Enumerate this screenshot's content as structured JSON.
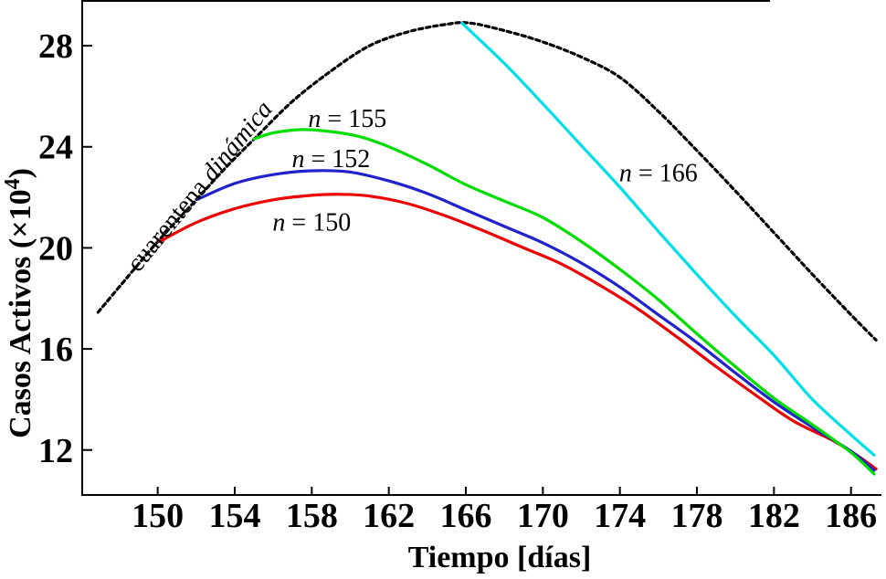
{
  "figure": {
    "background": "#ffffff",
    "frame_color": "#000000"
  },
  "chart_data": {
    "type": "line",
    "title": "",
    "xlabel": "Tiempo [días]",
    "ylabel": "Casos Activos (×10⁴)",
    "ylabel_parts": {
      "main": "Casos Activos  (×10",
      "sup": "4",
      "close": ")"
    },
    "xlim": [
      146.08,
      187.58
    ],
    "ylim": [
      10.22,
      29.81
    ],
    "x_ticks": [
      150,
      154,
      158,
      162,
      166,
      170,
      174,
      178,
      182,
      186
    ],
    "y_ticks": [
      12,
      16,
      20,
      24,
      28
    ],
    "grid": false,
    "legend_position": "none",
    "series": [
      {
        "name": "cuarentena dinámica",
        "color": "#000000",
        "style": "dotted",
        "points": [
          [
            146.9,
            17.45
          ],
          [
            148,
            18.45
          ],
          [
            150,
            20.25
          ],
          [
            152,
            21.9
          ],
          [
            153.5,
            23.15
          ],
          [
            155,
            24.3
          ],
          [
            157,
            25.8
          ],
          [
            159,
            27.0
          ],
          [
            161,
            28.0
          ],
          [
            163,
            28.55
          ],
          [
            165,
            28.85
          ],
          [
            166.2,
            28.9
          ],
          [
            168,
            28.6
          ],
          [
            170,
            28.15
          ],
          [
            172,
            27.55
          ],
          [
            174,
            26.75
          ],
          [
            176,
            25.4
          ],
          [
            178,
            23.85
          ],
          [
            180,
            22.25
          ],
          [
            182,
            20.6
          ],
          [
            184,
            18.95
          ],
          [
            186,
            17.35
          ],
          [
            187.3,
            16.35
          ]
        ]
      },
      {
        "name": "n = 150",
        "color": "#ee0000",
        "style": "solid",
        "points": [
          [
            150.1,
            20.25
          ],
          [
            152,
            21.0
          ],
          [
            154,
            21.55
          ],
          [
            156,
            21.9
          ],
          [
            158,
            22.08
          ],
          [
            159.5,
            22.12
          ],
          [
            161,
            22.05
          ],
          [
            163,
            21.75
          ],
          [
            165,
            21.25
          ],
          [
            167,
            20.65
          ],
          [
            169,
            20.0
          ],
          [
            171,
            19.35
          ],
          [
            173,
            18.5
          ],
          [
            175,
            17.55
          ],
          [
            177,
            16.45
          ],
          [
            179,
            15.3
          ],
          [
            181,
            14.2
          ],
          [
            183,
            13.15
          ],
          [
            185,
            12.4
          ],
          [
            186.3,
            11.8
          ],
          [
            187.3,
            11.25
          ]
        ]
      },
      {
        "name": "n = 152",
        "color": "#2222cc",
        "style": "solid",
        "points": [
          [
            152.1,
            21.93
          ],
          [
            154,
            22.55
          ],
          [
            156,
            22.9
          ],
          [
            158,
            23.05
          ],
          [
            160,
            23.0
          ],
          [
            162,
            22.65
          ],
          [
            164,
            22.15
          ],
          [
            166,
            21.5
          ],
          [
            168,
            20.85
          ],
          [
            170,
            20.2
          ],
          [
            172,
            19.4
          ],
          [
            174,
            18.45
          ],
          [
            176,
            17.35
          ],
          [
            178,
            16.25
          ],
          [
            180,
            15.05
          ],
          [
            182,
            13.9
          ],
          [
            184,
            12.9
          ],
          [
            186,
            11.95
          ],
          [
            187.2,
            11.2
          ]
        ]
      },
      {
        "name": "n = 155",
        "color": "#00dd00",
        "style": "solid",
        "points": [
          [
            155,
            24.31
          ],
          [
            156,
            24.55
          ],
          [
            157.5,
            24.68
          ],
          [
            159,
            24.6
          ],
          [
            160.5,
            24.4
          ],
          [
            162,
            24.0
          ],
          [
            164,
            23.3
          ],
          [
            166,
            22.5
          ],
          [
            168,
            21.85
          ],
          [
            170,
            21.2
          ],
          [
            172,
            20.25
          ],
          [
            174,
            19.15
          ],
          [
            176,
            17.95
          ],
          [
            178,
            16.6
          ],
          [
            180,
            15.3
          ],
          [
            182,
            14.05
          ],
          [
            184,
            13.0
          ],
          [
            186,
            11.9
          ],
          [
            187.2,
            11.05
          ]
        ]
      },
      {
        "name": "n = 166",
        "color": "#00dfe8",
        "style": "solid",
        "points": [
          [
            165.8,
            28.9
          ],
          [
            168,
            27.3
          ],
          [
            170,
            25.7
          ],
          [
            172,
            24.05
          ],
          [
            174,
            22.4
          ],
          [
            176,
            20.65
          ],
          [
            178,
            18.95
          ],
          [
            180,
            17.3
          ],
          [
            182,
            15.75
          ],
          [
            184,
            14.0
          ],
          [
            186,
            12.6
          ],
          [
            187.2,
            11.8
          ]
        ]
      }
    ],
    "annotations": [
      {
        "text": "cuarentena dinámica",
        "day": 152.5,
        "value": 22.6,
        "rotation": -50.5,
        "size": 28,
        "parts": [
          {
            "t": "cuarentena ",
            "style": "roman"
          },
          {
            "t": "dinámica",
            "style": "italic"
          }
        ]
      },
      {
        "text": "n = 155",
        "day": 159.85,
        "value": 25.15,
        "rotation": 0,
        "size": 28,
        "parts": [
          {
            "t": "n",
            "style": "italic"
          },
          {
            "t": " = 155",
            "style": "roman"
          }
        ]
      },
      {
        "text": "n = 152",
        "day": 159.0,
        "value": 23.55,
        "rotation": 0,
        "size": 28,
        "parts": [
          {
            "t": "n",
            "style": "italic"
          },
          {
            "t": " = 152",
            "style": "roman"
          }
        ]
      },
      {
        "text": "n = 150",
        "day": 158.0,
        "value": 21.05,
        "rotation": 0,
        "size": 28,
        "parts": [
          {
            "t": "n",
            "style": "italic"
          },
          {
            "t": " = 150",
            "style": "roman"
          }
        ]
      },
      {
        "text": "n = 166",
        "day": 176.0,
        "value": 23.0,
        "rotation": 0,
        "size": 28,
        "parts": [
          {
            "t": "n",
            "style": "italic"
          },
          {
            "t": " = 166",
            "style": "roman"
          }
        ]
      }
    ]
  }
}
